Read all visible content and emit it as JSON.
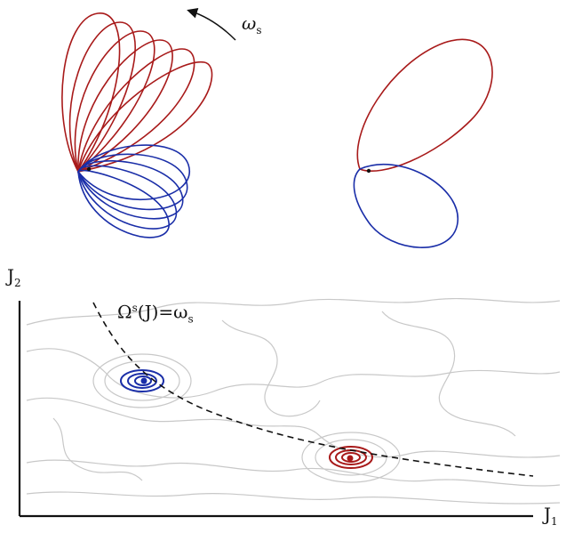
{
  "labels": {
    "omega": "ω",
    "omega_sub": "s",
    "j2": "J",
    "j2_sub": "2",
    "j1": "J",
    "j1_sub": "1",
    "resonance_omega": "Ω",
    "resonance_sup": "s",
    "resonance_args": "(J)=ω",
    "resonance_sub": "s"
  },
  "colors": {
    "red": "#a81a1a",
    "blue": "#1a2ea8",
    "contour_gray": "#c8c8c8",
    "axis": "#111111"
  }
}
